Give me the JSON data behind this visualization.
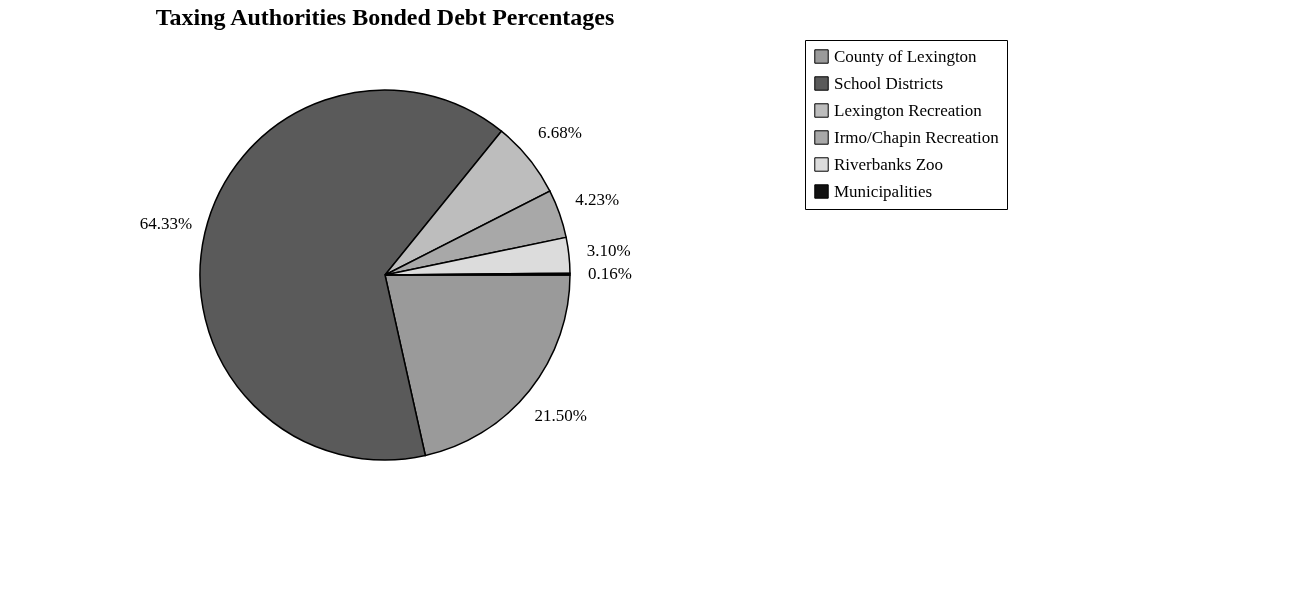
{
  "chart_data": {
    "type": "pie",
    "title": "Taxing Authorities Bonded Debt Percentages",
    "categories": [
      "County of Lexington",
      "School Districts",
      "Lexington Recreation",
      "Irmo/Chapin Recreation",
      "Riverbanks Zoo",
      "Municipalities"
    ],
    "values": [
      21.5,
      64.33,
      6.68,
      4.23,
      3.1,
      0.16
    ],
    "value_labels": [
      "21.50%",
      "64.33%",
      "6.68%",
      "4.23%",
      "3.10%",
      "0.16%"
    ],
    "colors": [
      "#9a9a9a",
      "#5a5a5a",
      "#bdbdbd",
      "#a8a8a8",
      "#dcdcdc",
      "#111111"
    ],
    "legend": "right"
  }
}
